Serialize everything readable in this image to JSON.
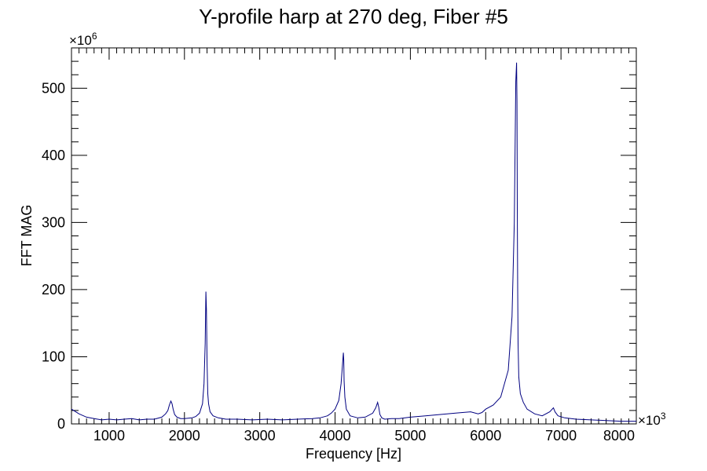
{
  "chart_data": {
    "type": "line",
    "title": "Y-profile harp at 270 deg, Fiber #5",
    "xlabel": "Frequency [Hz]",
    "ylabel": "FFT MAG",
    "x_multiplier_label": "×10",
    "x_multiplier_exp": "3",
    "y_multiplier_label": "×10",
    "y_multiplier_exp": "6",
    "xlim": [
      500,
      8000
    ],
    "ylim": [
      0,
      560
    ],
    "x_ticks": [
      1000,
      2000,
      3000,
      4000,
      5000,
      6000,
      7000,
      8000
    ],
    "x_tick_labels": [
      "1000",
      "2000",
      "3000",
      "4000",
      "5000",
      "6000",
      "7000",
      "8000"
    ],
    "y_ticks": [
      0,
      100,
      200,
      300,
      400,
      500
    ],
    "y_tick_labels": [
      "0",
      "100",
      "200",
      "300",
      "400",
      "500"
    ],
    "grid": false,
    "line_color": "#000080",
    "series": [
      {
        "x": [
          500,
          600,
          700,
          800,
          900,
          1000,
          1100,
          1200,
          1300,
          1400,
          1500,
          1600,
          1700,
          1750,
          1780,
          1800,
          1820,
          1835,
          1850,
          1870,
          1900,
          1950,
          2000,
          2100,
          2150,
          2200,
          2240,
          2260,
          2275,
          2285,
          2292,
          2300,
          2310,
          2320,
          2340,
          2380,
          2450,
          2550,
          2700,
          2900,
          3100,
          3300,
          3500,
          3700,
          3800,
          3900,
          3950,
          4000,
          4050,
          4080,
          4100,
          4110,
          4115,
          4120,
          4130,
          4150,
          4200,
          4300,
          4400,
          4500,
          4540,
          4565,
          4580,
          4595,
          4620,
          4660,
          4750,
          4850,
          5000,
          5200,
          5400,
          5600,
          5800,
          5900,
          5950,
          6000,
          6100,
          6200,
          6300,
          6350,
          6380,
          6400,
          6410,
          6415,
          6420,
          6425,
          6430,
          6440,
          6460,
          6500,
          6550,
          6650,
          6750,
          6850,
          6900,
          6920,
          6960,
          7050,
          7200,
          7400,
          7600,
          7800,
          8000
        ],
        "y": [
          22,
          15,
          10,
          8,
          6,
          7,
          6,
          7,
          8,
          6,
          7,
          7,
          10,
          15,
          20,
          28,
          34,
          30,
          22,
          14,
          10,
          8,
          8,
          9,
          11,
          16,
          30,
          60,
          120,
          197,
          170,
          90,
          45,
          30,
          18,
          12,
          9,
          7,
          7,
          6,
          7,
          6,
          7,
          8,
          9,
          12,
          16,
          22,
          35,
          60,
          90,
          106,
          95,
          65,
          40,
          22,
          12,
          9,
          10,
          16,
          24,
          32,
          25,
          14,
          9,
          7,
          8,
          8,
          10,
          12,
          14,
          16,
          18,
          15,
          17,
          22,
          28,
          40,
          80,
          160,
          300,
          510,
          538,
          480,
          320,
          200,
          120,
          70,
          45,
          32,
          22,
          15,
          12,
          18,
          24,
          18,
          12,
          9,
          7,
          6,
          5,
          4,
          4
        ]
      }
    ]
  }
}
